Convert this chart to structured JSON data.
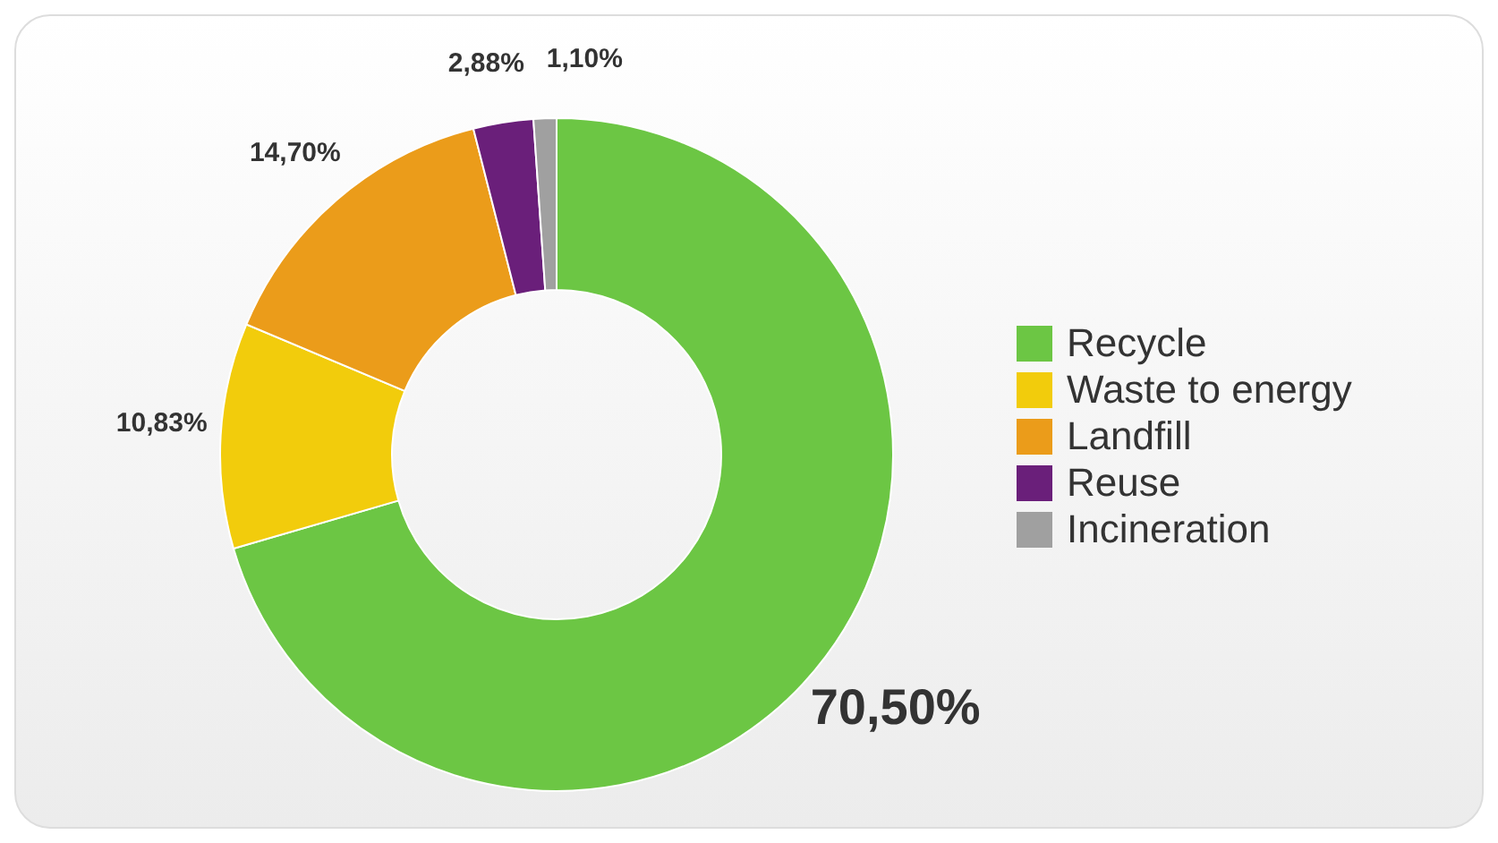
{
  "chart_data": {
    "type": "donut",
    "categories": [
      "Recycle",
      "Waste to energy",
      "Landfill",
      "Reuse",
      "Incineration"
    ],
    "values": [
      70.5,
      10.83,
      14.7,
      2.88,
      1.1
    ],
    "value_labels": [
      "70,50%",
      "10,83%",
      "14,70%",
      "2,88%",
      "1,10%"
    ],
    "colors": [
      "#6cc644",
      "#f2cc0c",
      "#eb9c1a",
      "#6a1f7a",
      "#a0a0a0"
    ],
    "legend": "right"
  }
}
